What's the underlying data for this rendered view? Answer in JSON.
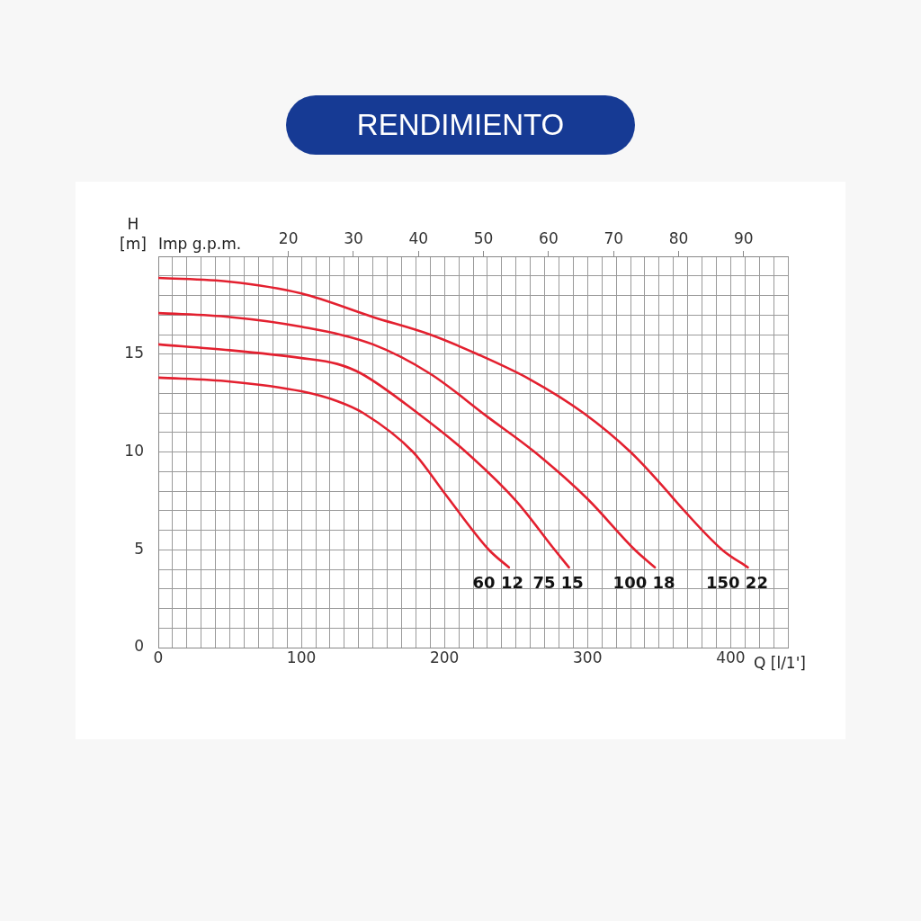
{
  "chart_data": {
    "type": "line",
    "title": "RENDIMIENTO",
    "xlabel": "Q [l/1']",
    "ylabel": "H [m]",
    "x2label": "Imp g.p.m.",
    "xlim": [
      0,
      440
    ],
    "ylim": [
      0,
      20
    ],
    "x2lim": [
      0,
      96.8
    ],
    "xticks": [
      0,
      {
        "value": 10,
        "label": null
      },
      {
        "value": 20,
        "label": null
      },
      {
        "value": 30,
        "label": null
      },
      {
        "value": 40,
        "label": null
      },
      {
        "value": 50,
        "label": null
      },
      {
        "value": 60,
        "label": null
      },
      {
        "value": 70,
        "label": null
      },
      {
        "value": 80,
        "label": null
      },
      {
        "value": 90,
        "label": null
      },
      100,
      {
        "value": 110,
        "label": null
      },
      {
        "value": 120,
        "label": null
      },
      {
        "value": 130,
        "label": null
      },
      {
        "value": 140,
        "label": null
      },
      {
        "value": 150,
        "label": null
      },
      {
        "value": 160,
        "label": null
      },
      {
        "value": 170,
        "label": null
      },
      {
        "value": 180,
        "label": null
      },
      {
        "value": 190,
        "label": null
      },
      200,
      {
        "value": 210,
        "label": null
      },
      {
        "value": 220,
        "label": null
      },
      {
        "value": 230,
        "label": null
      },
      {
        "value": 240,
        "label": null
      },
      {
        "value": 250,
        "label": null
      },
      {
        "value": 260,
        "label": null
      },
      {
        "value": 270,
        "label": null
      },
      {
        "value": 280,
        "label": null
      },
      {
        "value": 290,
        "label": null
      },
      300,
      {
        "value": 310,
        "label": null
      },
      {
        "value": 320,
        "label": null
      },
      {
        "value": 330,
        "label": null
      },
      {
        "value": 340,
        "label": null
      },
      {
        "value": 350,
        "label": null
      },
      {
        "value": 360,
        "label": null
      },
      {
        "value": 370,
        "label": null
      },
      {
        "value": 380,
        "label": null
      },
      {
        "value": 390,
        "label": null
      },
      400,
      {
        "value": 410,
        "label": null
      },
      {
        "value": 420,
        "label": null
      },
      {
        "value": 430,
        "label": null
      },
      {
        "value": 440,
        "label": null
      }
    ],
    "yticks": [
      0,
      {
        "value": 1,
        "label": null
      },
      {
        "value": 2,
        "label": null
      },
      {
        "value": 3,
        "label": null
      },
      {
        "value": 4,
        "label": null
      },
      5,
      {
        "value": 6,
        "label": null
      },
      {
        "value": 7,
        "label": null
      },
      {
        "value": 8,
        "label": null
      },
      {
        "value": 9,
        "label": null
      },
      10,
      {
        "value": 11,
        "label": null
      },
      {
        "value": 12,
        "label": null
      },
      {
        "value": 13,
        "label": null
      },
      {
        "value": 14,
        "label": null
      },
      15,
      {
        "value": 16,
        "label": null
      },
      {
        "value": 17,
        "label": null
      },
      {
        "value": 18,
        "label": null
      },
      {
        "value": 19,
        "label": null
      },
      {
        "value": 20,
        "label": null
      }
    ],
    "x2ticks": [
      20,
      30,
      40,
      50,
      60,
      70,
      80,
      90
    ],
    "grid": true,
    "legend": false,
    "marker": "none",
    "line_style": "solid",
    "series": [
      {
        "name": "60 12",
        "color": "#e3202f",
        "x": [
          0,
          50,
          100,
          125,
          143,
          178,
          200,
          231,
          245
        ],
        "values": [
          13.8,
          13.6,
          13.1,
          12.6,
          12,
          10,
          7.9,
          5,
          4.1
        ]
      },
      {
        "name": "75 15",
        "color": "#e3202f",
        "x": [
          0,
          50,
          100,
          125,
          142,
          181,
          215,
          250,
          277,
          287
        ],
        "values": [
          15.5,
          15.2,
          14.8,
          14.5,
          14,
          12,
          10,
          7.5,
          5,
          4.1
        ]
      },
      {
        "name": "100 18",
        "color": "#e3202f",
        "x": [
          0,
          50,
          100,
          150,
          190,
          230,
          263,
          300,
          333,
          347
        ],
        "values": [
          17.1,
          16.9,
          16.4,
          15.5,
          14,
          11.8,
          10,
          7.6,
          5,
          4.1
        ]
      },
      {
        "name": "150 22",
        "color": "#e3202f",
        "x": [
          0,
          50,
          100,
          150,
          190,
          223,
          260,
          297,
          330,
          394,
          412
        ],
        "values": [
          18.9,
          18.7,
          18.1,
          16.9,
          16,
          15,
          13.7,
          12,
          10,
          5,
          4.1
        ]
      }
    ]
  }
}
